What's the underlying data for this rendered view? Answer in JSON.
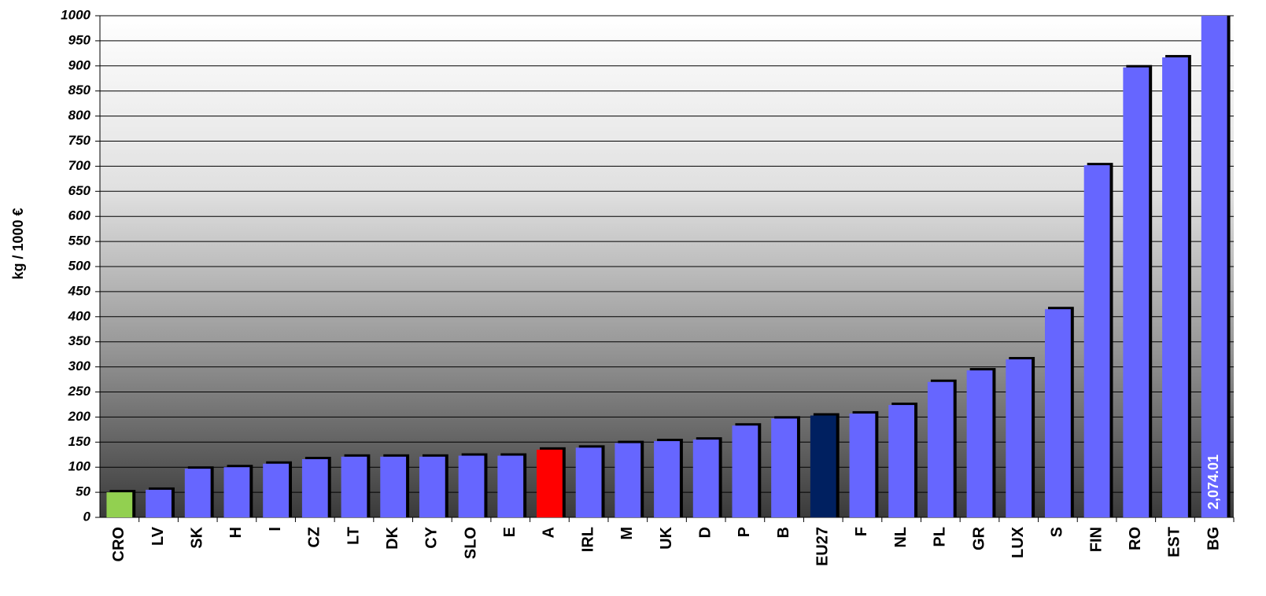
{
  "chart_data": {
    "type": "bar",
    "y_label": "kg / 1000 €",
    "categories": [
      "CRO",
      "LV",
      "SK",
      "H",
      "I",
      "CZ",
      "LT",
      "DK",
      "CY",
      "SLO",
      "E",
      "A",
      "IRL",
      "M",
      "UK",
      "D",
      "P",
      "B",
      "EU27",
      "F",
      "NL",
      "PL",
      "GR",
      "LUX",
      "S",
      "FIN",
      "RO",
      "EST",
      "BG"
    ],
    "values": [
      50,
      55,
      97,
      100,
      107,
      116,
      121,
      121,
      121,
      123,
      123,
      135,
      139,
      148,
      152,
      155,
      183,
      197,
      203,
      207,
      224,
      270,
      293,
      315,
      415,
      702,
      897,
      917,
      2074.01
    ],
    "value_labels": [
      null,
      null,
      null,
      null,
      null,
      null,
      null,
      null,
      null,
      null,
      null,
      null,
      null,
      null,
      null,
      null,
      null,
      null,
      null,
      null,
      null,
      null,
      null,
      null,
      null,
      null,
      null,
      null,
      "2,074.01"
    ],
    "colors": [
      "#92d050",
      "#6666ff",
      "#6666ff",
      "#6666ff",
      "#6666ff",
      "#6666ff",
      "#6666ff",
      "#6666ff",
      "#6666ff",
      "#6666ff",
      "#6666ff",
      "#ff0000",
      "#6666ff",
      "#6666ff",
      "#6666ff",
      "#6666ff",
      "#6666ff",
      "#6666ff",
      "#002060",
      "#6666ff",
      "#6666ff",
      "#6666ff",
      "#6666ff",
      "#6666ff",
      "#6666ff",
      "#6666ff",
      "#6666ff",
      "#6666ff",
      "#6666ff"
    ],
    "ylim": [
      0,
      1000
    ],
    "yticks": [
      0,
      50,
      100,
      150,
      200,
      250,
      300,
      350,
      400,
      450,
      500,
      550,
      600,
      650,
      700,
      750,
      800,
      850,
      900,
      950,
      1000
    ],
    "grid": true
  }
}
